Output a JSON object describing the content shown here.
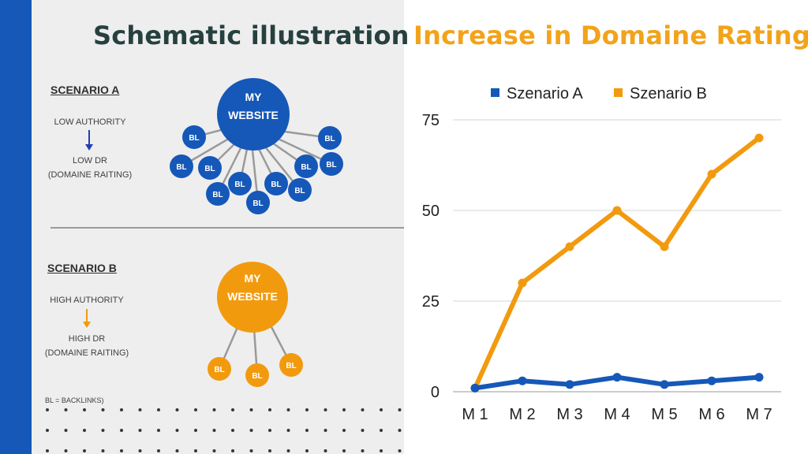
{
  "schematic": {
    "title": "Schematic illustration",
    "scenario_a": {
      "heading": "SCENARIO A",
      "authority": "LOW AUTHORITY",
      "dr": "LOW DR",
      "dr_note": "(DOMAINE RAITING)",
      "website_line1": "MY",
      "website_line2": "WEBSITE",
      "backlink_label": "BL",
      "backlink_count": 12,
      "color": "#1558b8"
    },
    "scenario_b": {
      "heading": "SCENARIO B",
      "authority": "HIGH AUTHORITY",
      "dr": "HIGH DR",
      "dr_note": "(DOMAINE RAITING)",
      "website_line1": "MY",
      "website_line2": "WEBSITE",
      "backlink_label": "BL",
      "backlink_count": 3,
      "color": "#f29a0e"
    },
    "footnote": "BL = BACKLINKS)"
  },
  "chart_data": {
    "type": "line",
    "title": "Increase in Domaine Rating",
    "categories": [
      "M 1",
      "M 2",
      "M 3",
      "M 4",
      "M 5",
      "M 6",
      "M 7"
    ],
    "series": [
      {
        "name": "Szenario A",
        "values": [
          1,
          3,
          2,
          4,
          2,
          3,
          4
        ],
        "color": "#1558b8"
      },
      {
        "name": "Szenario B",
        "values": [
          1,
          30,
          40,
          50,
          40,
          60,
          70
        ],
        "color": "#f29a0e"
      }
    ],
    "yticks": [
      0,
      25,
      50,
      75
    ],
    "ylim": [
      0,
      75
    ],
    "xlabel": "",
    "ylabel": "",
    "grid": true,
    "legend_position": "top"
  }
}
